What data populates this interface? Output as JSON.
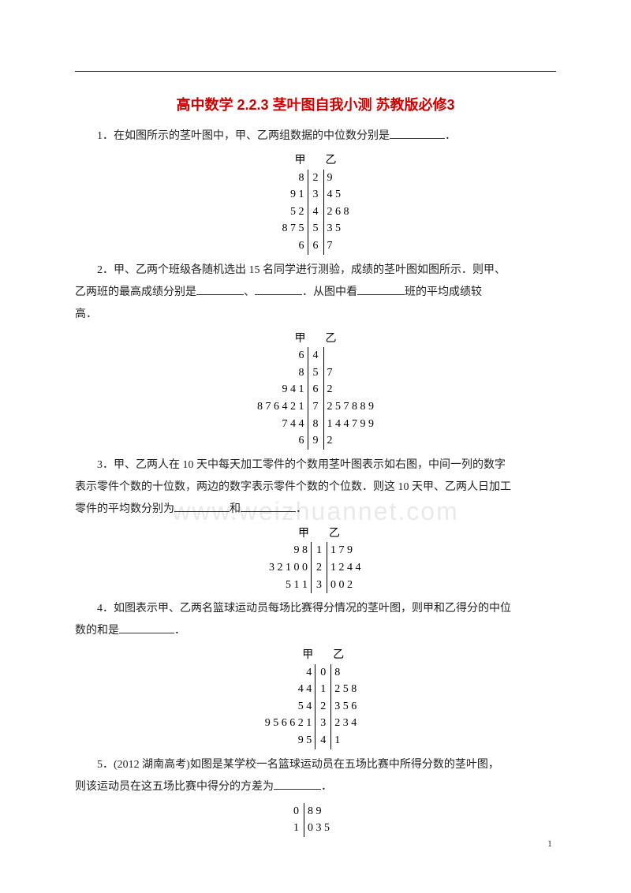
{
  "title": "高中数学 2.2.3 茎叶图自我小测 苏教版必修3",
  "watermark": "www.weizhuannet.com",
  "pagenum": "1",
  "q1": {
    "text": "1．在如图所示的茎叶图中，甲、乙两组数据的中位数分别是",
    "tail": "．",
    "header_l": "甲",
    "header_r": "乙",
    "rows": [
      {
        "l": "8",
        "s": "2",
        "r": "9"
      },
      {
        "l": "9 1",
        "s": "3",
        "r": "4 5"
      },
      {
        "l": "5 2",
        "s": "4",
        "r": "2 6 8"
      },
      {
        "l": "8 7 5",
        "s": "5",
        "r": "3 5"
      },
      {
        "l": "6",
        "s": "6",
        "r": "7"
      }
    ]
  },
  "q2": {
    "text_a": "2．甲、乙两个班级各随机选出 15 名同学进行测验，成绩的茎叶图如图所示．则甲、",
    "text_b": "乙两班的最高成绩分别是",
    "text_c": "、",
    "text_d": "．从图中看",
    "text_e": "班的平均成绩较",
    "text_f": "高．",
    "header_l": "甲",
    "header_r": "乙",
    "rows": [
      {
        "l": "6",
        "s": "4",
        "r": ""
      },
      {
        "l": "8",
        "s": "5",
        "r": "7"
      },
      {
        "l": "9 4 1",
        "s": "6",
        "r": "2"
      },
      {
        "l": "8 7 6 4 2 1",
        "s": "7",
        "r": "2 5 7 8 8 9"
      },
      {
        "l": "7 4 4",
        "s": "8",
        "r": "1 4 4 7 9 9"
      },
      {
        "l": "6",
        "s": "9",
        "r": "2"
      }
    ]
  },
  "q3": {
    "text_a": "3．甲、乙两人在 10 天中每天加工零件的个数用茎叶图表示如右图，中间一列的数字",
    "text_b": "表示零件个数的十位数，两边的数字表示零件个数的个位数．则这 10 天甲、乙两人日加工",
    "text_c": "零件的平均数分别为",
    "text_d": "和",
    "text_e": "．",
    "header_l": "甲",
    "header_r": "乙",
    "rows": [
      {
        "l": "9 8",
        "s": "1",
        "r": "1 7 9"
      },
      {
        "l": "3 2 1 0 0",
        "s": "2",
        "r": "1 2 4 4"
      },
      {
        "l": "5 1 1",
        "s": "3",
        "r": "0 0 2"
      }
    ]
  },
  "q4": {
    "text_a": "4．如图表示甲、乙两名篮球运动员每场比赛得分情况的茎叶图，则甲和乙得分的中位",
    "text_b": "数的和是",
    "text_c": "．",
    "header_l": "甲",
    "header_r": "乙",
    "rows": [
      {
        "l": "4",
        "s": "0",
        "r": "8"
      },
      {
        "l": "4 4",
        "s": "1",
        "r": "2 5 8"
      },
      {
        "l": "5 4",
        "s": "2",
        "r": "3 5 6"
      },
      {
        "l": "9 5 6 6 2 1",
        "s": "3",
        "r": "2 3 4"
      },
      {
        "l": "9 5",
        "s": "4",
        "r": "1"
      }
    ]
  },
  "q5": {
    "text_a": "5．(2012 湖南高考)如图是某学校一名篮球运动员在五场比赛中所得分数的茎叶图，",
    "text_b": "则该运动员在这五场比赛中得分的方差为",
    "text_c": "．",
    "rows": [
      {
        "l": "",
        "s": "0",
        "r": "8 9"
      },
      {
        "l": "",
        "s": "1",
        "r": "0 3 5"
      }
    ]
  }
}
